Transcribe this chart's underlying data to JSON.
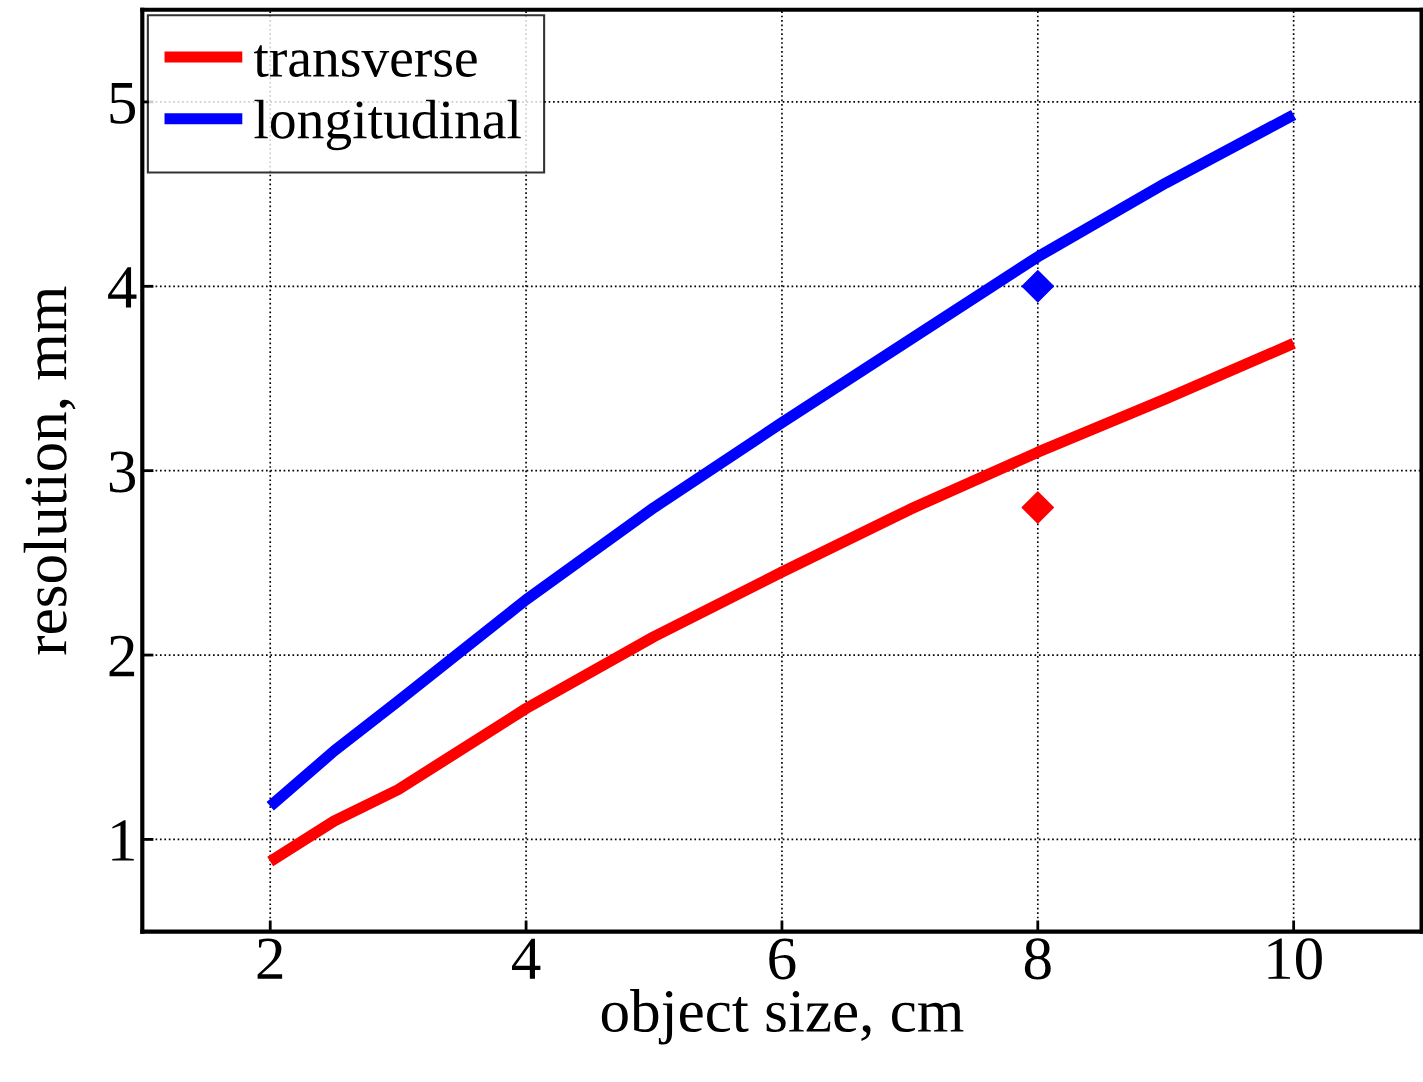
{
  "chart_data": {
    "type": "line",
    "xlabel": "object size, cm",
    "ylabel": "resolution, mm",
    "xlim": [
      1,
      11
    ],
    "xticks": [
      2,
      4,
      6,
      8,
      10
    ],
    "ylim": [
      0.5,
      5.5
    ],
    "yticks": [
      1,
      2,
      3,
      4,
      5
    ],
    "grid": true,
    "legend": "top left",
    "line_style": "solid",
    "series": [
      {
        "name": "transverse",
        "color": "#ff0000",
        "x": [
          2,
          2.5,
          3,
          4,
          5,
          6,
          7,
          8,
          9,
          10
        ],
        "values": [
          0.88,
          1.1,
          1.27,
          1.71,
          2.1,
          2.45,
          2.79,
          3.1,
          3.39,
          3.69
        ]
      },
      {
        "name": "longitudinal",
        "color": "#0000ff",
        "x": [
          2,
          2.5,
          3,
          4,
          5,
          6,
          7,
          8,
          9,
          10
        ],
        "values": [
          1.18,
          1.48,
          1.75,
          2.3,
          2.8,
          3.26,
          3.71,
          4.16,
          4.56,
          4.93
        ]
      },
      {
        "type": "scatter",
        "marker": "diamond",
        "color": "#0000ff",
        "x": [
          8
        ],
        "values": [
          4.0
        ]
      },
      {
        "type": "scatter",
        "marker": "diamond",
        "color": "#ff0000",
        "x": [
          8
        ],
        "values": [
          2.8
        ]
      }
    ]
  }
}
